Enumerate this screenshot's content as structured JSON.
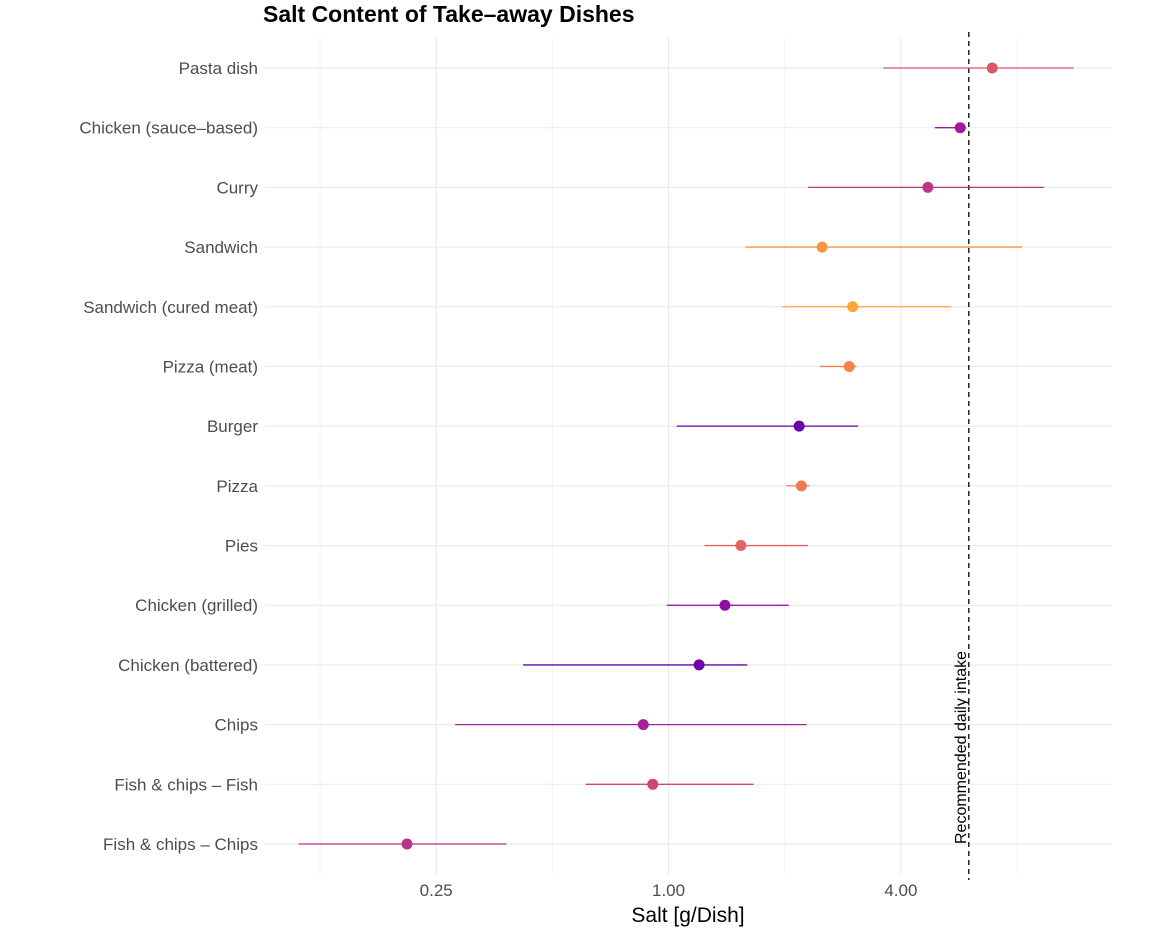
{
  "chart_data": {
    "type": "scatter",
    "title": "Salt Content of Take–away Dishes",
    "xlabel": "Salt [g/Dish]",
    "ylabel": "",
    "x_scale": "log2",
    "xlim": [
      0.09,
      14.1
    ],
    "x_ticks": [
      0.25,
      1.0,
      4.0
    ],
    "x_tick_labels": [
      "0.25",
      "1.00",
      "4.00"
    ],
    "x_minor_grid": [
      0.125,
      0.5,
      2,
      8
    ],
    "grid": true,
    "reference_line": {
      "value": 6.0,
      "label": "Recommended daily intake",
      "style": "dashed"
    },
    "points": [
      {
        "label": "Pasta dish",
        "value": 6.9,
        "low": 3.6,
        "high": 11.2,
        "color": "#d8576b"
      },
      {
        "label": "Chicken (sauce–based)",
        "value": 5.7,
        "low": 4.9,
        "high": 5.9,
        "color": "#a01a9c"
      },
      {
        "label": "Curry",
        "value": 4.7,
        "low": 2.3,
        "high": 9.4,
        "color": "#bd3786"
      },
      {
        "label": "Sandwich",
        "value": 2.5,
        "low": 1.58,
        "high": 8.25,
        "color": "#f89540"
      },
      {
        "label": "Sandwich (cured meat)",
        "value": 3.0,
        "low": 1.97,
        "high": 5.4,
        "color": "#fca636"
      },
      {
        "label": "Pizza (meat)",
        "value": 2.94,
        "low": 2.47,
        "high": 3.07,
        "color": "#f2844b"
      },
      {
        "label": "Burger",
        "value": 2.18,
        "low": 1.05,
        "high": 3.1,
        "color": "#6a00a8"
      },
      {
        "label": "Pizza",
        "value": 2.21,
        "low": 2.02,
        "high": 2.32,
        "color": "#ed7953"
      },
      {
        "label": "Pies",
        "value": 1.54,
        "low": 1.24,
        "high": 2.3,
        "color": "#e16462"
      },
      {
        "label": "Chicken (grilled)",
        "value": 1.4,
        "low": 0.99,
        "high": 2.05,
        "color": "#8f0da4"
      },
      {
        "label": "Chicken (battered)",
        "value": 1.2,
        "low": 0.42,
        "high": 1.6,
        "color": "#7201a8"
      },
      {
        "label": "Chips",
        "value": 0.86,
        "low": 0.28,
        "high": 2.28,
        "color": "#a62098"
      },
      {
        "label": "Fish & chips – Fish",
        "value": 0.91,
        "low": 0.61,
        "high": 1.66,
        "color": "#cc4778"
      },
      {
        "label": "Fish & chips – Chips",
        "value": 0.21,
        "low": 0.11,
        "high": 0.38,
        "color": "#b83289"
      }
    ]
  }
}
